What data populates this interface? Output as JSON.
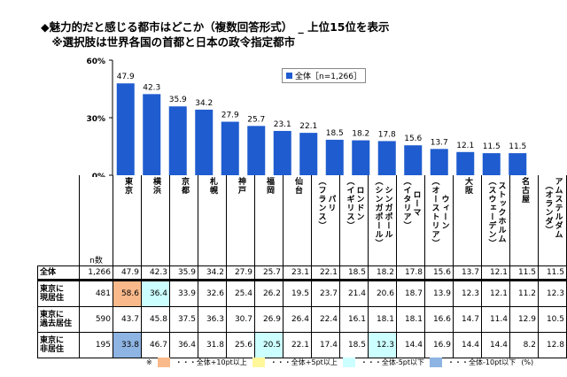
{
  "title": {
    "line1": "◆魅力的だと感じる都市はどこか（複数回答形式）　_ 上位15位を表示",
    "line2": "　※選択肢は世界各国の首都と日本の政令指定都市"
  },
  "colors": {
    "bar": "#1f5ccf",
    "plus10": "#f9b98a",
    "plus5": "#fff79a",
    "minus5": "#ccffff",
    "minus10": "#8db4e2"
  },
  "chart_data": {
    "type": "bar",
    "categories": [
      "東京",
      "横浜",
      "京都",
      "札幌",
      "神戸",
      "福岡",
      "仙台",
      "パリ\n（フランス）",
      "ロンドン\n（イギリス）",
      "シンガポール\n（シンガポール）",
      "ローマ\n（イタリア）",
      "ウィーン\n（オーストリア）",
      "大阪",
      "ストックホルム\n（スウェーデン）",
      "名古屋",
      "アムステルダム\n（オランダ）"
    ],
    "series": [
      {
        "name": "全体［n=1,266］",
        "values": [
          47.9,
          42.3,
          35.9,
          34.2,
          27.9,
          25.7,
          23.1,
          22.1,
          18.5,
          18.2,
          17.8,
          15.6,
          13.7,
          12.1,
          11.5,
          11.5
        ]
      }
    ],
    "yticks": [
      "60%",
      "30%",
      "0%"
    ],
    "ylim": [
      0,
      60
    ],
    "legend_position": "top-center"
  },
  "table": {
    "n_header": "n数",
    "rows": [
      {
        "label": "全体",
        "n": "1,266",
        "values": [
          "47.9",
          "42.3",
          "35.9",
          "34.2",
          "27.9",
          "25.7",
          "23.1",
          "22.1",
          "18.5",
          "18.2",
          "17.8",
          "15.6",
          "13.7",
          "12.1",
          "11.5",
          "11.5"
        ],
        "highlight": {}
      },
      {
        "label": "東京に\n現居住",
        "n": "481",
        "values": [
          "58.6",
          "36.4",
          "33.9",
          "32.6",
          "25.4",
          "26.2",
          "19.5",
          "23.7",
          "21.4",
          "20.6",
          "18.7",
          "13.9",
          "12.3",
          "12.1",
          "11.2",
          "12.3"
        ],
        "highlight": {
          "0": "plus10",
          "1": "minus5"
        }
      },
      {
        "label": "東京に\n過去居住",
        "n": "590",
        "values": [
          "43.7",
          "45.8",
          "37.5",
          "36.3",
          "30.7",
          "26.9",
          "26.4",
          "22.4",
          "16.1",
          "18.1",
          "18.1",
          "16.6",
          "14.7",
          "11.4",
          "12.9",
          "10.5"
        ],
        "highlight": {}
      },
      {
        "label": "東京に\n非居住",
        "n": "195",
        "values": [
          "33.8",
          "46.7",
          "36.4",
          "31.8",
          "25.6",
          "20.5",
          "22.1",
          "17.4",
          "18.5",
          "12.3",
          "14.4",
          "16.9",
          "14.4",
          "14.4",
          "8.2",
          "12.8"
        ],
        "highlight": {
          "0": "minus10",
          "5": "minus5",
          "9": "minus5"
        }
      }
    ]
  },
  "footnote": {
    "mark": "※",
    "plus10": "・・・全体+10pt以上",
    "plus5": "・・・全体+5pt以上",
    "minus5": "・・・全体-5pt以下",
    "minus10": "・・・全体-10pt以下",
    "unit": "(%)"
  }
}
